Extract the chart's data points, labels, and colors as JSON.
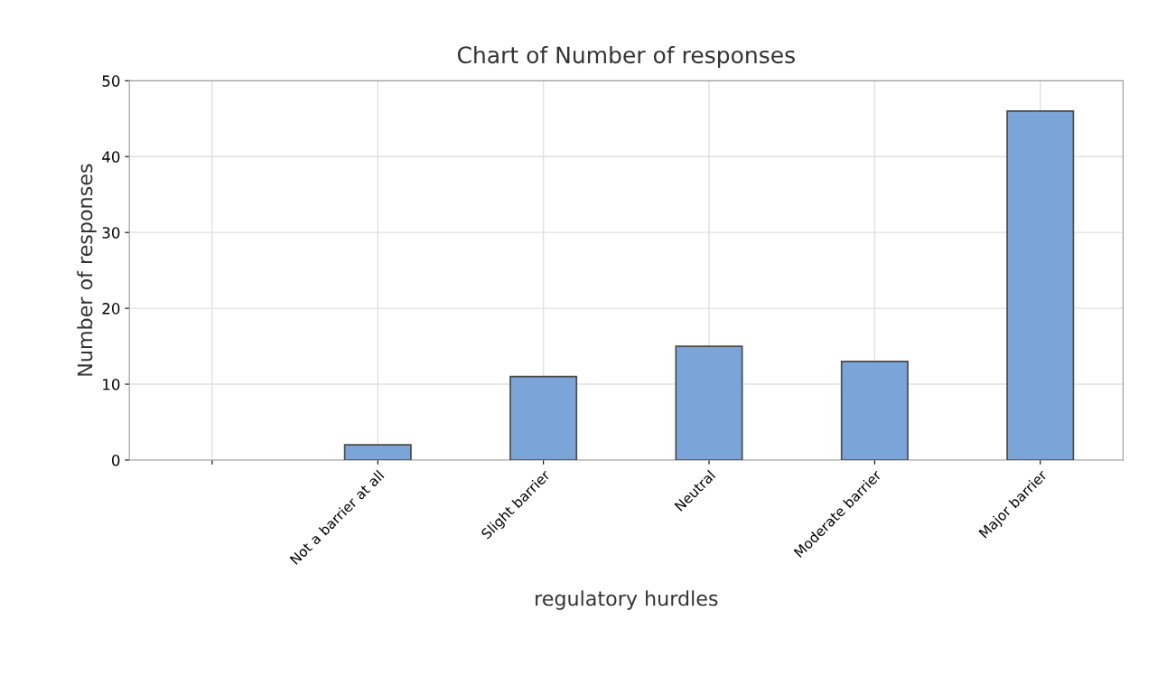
{
  "chart_data": {
    "type": "bar",
    "title": "Chart of Number of responses",
    "xlabel": "regulatory hurdles",
    "ylabel": "Number of responses",
    "categories": [
      null,
      "Not a barrier at all",
      "Slight barrier",
      "Neutral",
      "Moderate barrier",
      "Major barrier"
    ],
    "values": [
      0,
      2,
      11,
      15,
      13,
      46
    ],
    "color": "#7ba5d8",
    "ylim": [
      0,
      50
    ],
    "yticks": [
      0,
      10,
      20,
      30,
      40,
      50
    ],
    "grid": true,
    "legend": false
  }
}
